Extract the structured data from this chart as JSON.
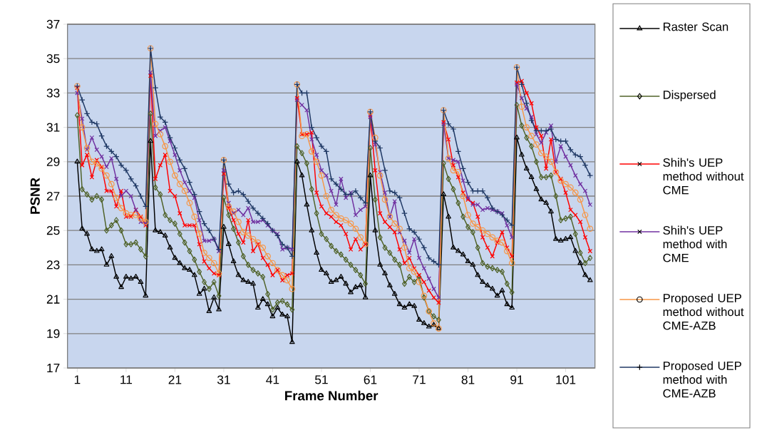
{
  "chart_data": {
    "type": "line",
    "xlabel": "Frame Number",
    "ylabel": "PSNR",
    "x": [
      1,
      2,
      3,
      4,
      5,
      6,
      7,
      8,
      9,
      10,
      11,
      12,
      13,
      14,
      15,
      16,
      17,
      18,
      19,
      20,
      21,
      22,
      23,
      24,
      25,
      26,
      27,
      28,
      29,
      30,
      31,
      32,
      33,
      34,
      35,
      36,
      37,
      38,
      39,
      40,
      41,
      42,
      43,
      44,
      45,
      46,
      47,
      48,
      49,
      50,
      51,
      52,
      53,
      54,
      55,
      56,
      57,
      58,
      59,
      60,
      61,
      62,
      63,
      64,
      65,
      66,
      67,
      68,
      69,
      70,
      71,
      72,
      73,
      74,
      75,
      76,
      77,
      78,
      79,
      80,
      81,
      82,
      83,
      84,
      85,
      86,
      87,
      88,
      89,
      90,
      91,
      92,
      93,
      94,
      95,
      96,
      97,
      98,
      99,
      100,
      101,
      102,
      103,
      104,
      105,
      106
    ],
    "xlim": [
      -1,
      107
    ],
    "xticks": [
      1,
      11,
      21,
      31,
      41,
      51,
      61,
      71,
      81,
      91,
      101
    ],
    "ylim": [
      17,
      37
    ],
    "yticks": [
      17,
      19,
      21,
      23,
      25,
      27,
      29,
      31,
      33,
      35,
      37
    ],
    "grid": "y",
    "legend": "right",
    "line_style": "solid",
    "series": [
      {
        "name": "Raster Scan",
        "color": "#000000",
        "marker": "triangle",
        "values": [
          29.0,
          25.1,
          24.8,
          23.9,
          23.8,
          23.9,
          23.0,
          23.5,
          22.3,
          21.7,
          22.3,
          22.2,
          22.3,
          22.0,
          21.2,
          30.2,
          25.0,
          24.9,
          24.7,
          24.0,
          23.4,
          23.1,
          22.8,
          22.7,
          22.4,
          21.3,
          21.6,
          20.3,
          21.1,
          20.4,
          25.2,
          24.2,
          23.2,
          22.4,
          22.1,
          22.0,
          21.9,
          20.5,
          21.0,
          20.7,
          20.0,
          20.5,
          20.1,
          20.0,
          18.5,
          29.0,
          28.2,
          26.5,
          25.0,
          23.7,
          22.7,
          22.5,
          22.0,
          22.1,
          22.3,
          21.9,
          21.4,
          21.7,
          21.8,
          21.1,
          28.2,
          25.0,
          23.0,
          22.5,
          21.8,
          21.3,
          20.7,
          20.5,
          20.7,
          20.6,
          19.8,
          19.6,
          19.4,
          19.5,
          19.3,
          27.1,
          25.8,
          24.0,
          23.8,
          23.6,
          23.2,
          23.0,
          22.4,
          22.0,
          21.8,
          21.6,
          21.2,
          21.5,
          20.7,
          20.5,
          30.4,
          29.4,
          28.6,
          28.1,
          27.4,
          26.8,
          26.6,
          26.1,
          24.5,
          24.4,
          24.5,
          24.6,
          23.8,
          23.1,
          22.4,
          22.1
        ]
      },
      {
        "name": "Dispersed",
        "color": "#4f6228",
        "marker": "diamond",
        "values": [
          31.7,
          27.4,
          27.1,
          26.8,
          27.0,
          26.8,
          25.0,
          25.3,
          25.6,
          25.0,
          24.2,
          24.2,
          24.3,
          23.9,
          23.5,
          31.8,
          27.5,
          27.1,
          25.9,
          25.6,
          25.4,
          24.8,
          24.3,
          23.8,
          23.3,
          22.6,
          22.0,
          21.6,
          22.0,
          21.2,
          26.9,
          25.9,
          25.1,
          24.3,
          23.5,
          23.0,
          22.7,
          22.5,
          22.3,
          21.3,
          20.4,
          20.8,
          20.9,
          20.7,
          20.4,
          29.9,
          29.5,
          28.9,
          27.4,
          26.0,
          24.8,
          24.5,
          24.1,
          23.8,
          23.6,
          23.3,
          23.0,
          22.7,
          22.4,
          21.9,
          29.8,
          26.8,
          24.6,
          24.0,
          23.7,
          23.3,
          23.0,
          21.9,
          22.3,
          22.0,
          22.3,
          21.1,
          20.3,
          20.0,
          19.8,
          28.9,
          28.0,
          27.4,
          26.6,
          25.8,
          25.2,
          24.9,
          24.0,
          23.1,
          22.9,
          22.8,
          22.7,
          22.6,
          21.9,
          21.4,
          32.3,
          31.1,
          30.4,
          29.9,
          29.0,
          28.1,
          28.1,
          28.2,
          27.0,
          25.6,
          25.7,
          25.8,
          24.8,
          23.7,
          23.1,
          23.4
        ]
      },
      {
        "name": "Shih's UEP method without CME",
        "color": "#ff0000",
        "marker": "cross",
        "values": [
          33.3,
          28.8,
          29.4,
          28.1,
          29.1,
          28.7,
          27.3,
          27.3,
          26.4,
          27.3,
          25.8,
          25.8,
          26.2,
          25.8,
          25.3,
          34.0,
          28.0,
          28.8,
          29.4,
          27.3,
          27.0,
          26.0,
          25.3,
          25.3,
          25.3,
          24.2,
          23.2,
          22.8,
          22.5,
          22.4,
          28.3,
          26.3,
          25.6,
          24.8,
          24.3,
          25.6,
          23.8,
          24.2,
          23.4,
          23.0,
          22.4,
          22.7,
          22.1,
          22.4,
          22.5,
          32.7,
          30.6,
          30.6,
          30.7,
          27.2,
          26.4,
          26.0,
          25.8,
          25.5,
          25.3,
          24.8,
          23.9,
          24.5,
          23.9,
          24.2,
          31.7,
          28.5,
          26.0,
          25.5,
          25.2,
          24.9,
          23.9,
          23.1,
          23.4,
          22.8,
          22.4,
          22.0,
          21.5,
          21.1,
          20.8,
          31.3,
          30.3,
          28.8,
          28.1,
          27.2,
          26.8,
          26.6,
          25.8,
          24.6,
          24.0,
          23.5,
          24.3,
          24.9,
          24.0,
          23.5,
          33.6,
          33.7,
          33.0,
          32.4,
          31.0,
          30.5,
          28.6,
          30.3,
          28.4,
          28.0,
          27.2,
          26.2,
          25.9,
          25.5,
          24.6,
          23.8
        ]
      },
      {
        "name": "Shih's UEP method with CME",
        "color": "#7030a0",
        "marker": "cross",
        "values": [
          33.0,
          31.5,
          29.7,
          30.4,
          29.7,
          29.3,
          28.7,
          29.2,
          28.0,
          27.0,
          27.3,
          27.0,
          26.2,
          25.5,
          25.4,
          34.2,
          30.5,
          30.8,
          31.0,
          30.2,
          29.4,
          28.5,
          27.8,
          27.3,
          26.9,
          25.6,
          24.4,
          24.4,
          24.5,
          23.8,
          28.5,
          26.6,
          26.0,
          26.2,
          25.9,
          26.3,
          25.5,
          25.5,
          25.6,
          25.3,
          25.0,
          24.8,
          23.9,
          24.0,
          23.9,
          32.6,
          32.3,
          32.0,
          30.3,
          29.4,
          28.5,
          28.2,
          27.3,
          26.5,
          28.0,
          26.9,
          27.2,
          25.9,
          26.2,
          26.4,
          31.6,
          30.0,
          28.4,
          27.2,
          25.8,
          26.7,
          24.9,
          24.4,
          23.7,
          24.5,
          23.4,
          22.8,
          22.2,
          21.6,
          21.1,
          31.2,
          29.2,
          29.1,
          29.0,
          27.9,
          26.9,
          26.5,
          26.5,
          26.2,
          26.3,
          26.2,
          26.1,
          26.0,
          25.3,
          24.6,
          33.5,
          32.7,
          32.1,
          31.6,
          30.6,
          30.1,
          30.7,
          31.1,
          29.0,
          29.9,
          29.3,
          28.8,
          28.2,
          27.7,
          27.3,
          26.5
        ]
      },
      {
        "name": "Proposed UEP method without CME-AZB",
        "color": "#f79646",
        "marker": "circle",
        "values": [
          33.4,
          31.0,
          29.8,
          29.0,
          28.9,
          28.6,
          28.2,
          27.7,
          26.9,
          26.3,
          26.0,
          25.9,
          25.9,
          25.7,
          25.5,
          35.6,
          31.2,
          30.6,
          29.9,
          29.0,
          28.2,
          27.7,
          27.3,
          26.6,
          25.8,
          24.8,
          23.7,
          23.4,
          23.1,
          22.5,
          29.1,
          26.4,
          26.1,
          25.5,
          24.9,
          24.7,
          24.5,
          24.3,
          24.0,
          23.5,
          23.1,
          22.7,
          22.4,
          22.1,
          21.6,
          33.5,
          30.5,
          30.6,
          29.6,
          29.0,
          28.2,
          27.0,
          26.2,
          25.9,
          25.7,
          25.6,
          25.4,
          25.1,
          24.6,
          24.2,
          31.9,
          30.4,
          28.2,
          26.8,
          25.8,
          25.4,
          25.1,
          24.0,
          22.8,
          22.6,
          22.0,
          21.2,
          20.3,
          19.6,
          19.3,
          32.0,
          29.2,
          28.5,
          28.4,
          27.0,
          25.9,
          25.4,
          25.2,
          25.0,
          24.8,
          24.6,
          24.4,
          24.3,
          23.8,
          23.1,
          34.5,
          32.2,
          31.0,
          30.5,
          30.0,
          29.5,
          29.3,
          29.0,
          28.4,
          27.9,
          27.7,
          27.5,
          27.2,
          26.8,
          25.9,
          25.1
        ]
      },
      {
        "name": "Proposed UEP method with CME-AZB",
        "color": "#1f3864",
        "marker": "plus",
        "values": [
          33.4,
          32.6,
          31.8,
          31.3,
          31.2,
          30.5,
          29.9,
          29.6,
          29.3,
          28.8,
          28.5,
          28.0,
          27.6,
          27.0,
          26.4,
          35.6,
          33.3,
          31.6,
          31.3,
          30.4,
          29.8,
          29.1,
          28.6,
          27.8,
          27.1,
          26.1,
          25.4,
          25.0,
          24.5,
          23.9,
          29.1,
          27.7,
          27.2,
          27.3,
          27.1,
          26.7,
          26.3,
          26.0,
          25.7,
          25.4,
          25.0,
          24.7,
          24.2,
          24.0,
          23.5,
          33.5,
          33.0,
          33.0,
          31.0,
          30.4,
          29.9,
          29.6,
          28.0,
          27.7,
          27.4,
          27.1,
          27.1,
          27.3,
          26.9,
          26.6,
          31.9,
          30.2,
          29.8,
          28.5,
          27.3,
          27.2,
          26.9,
          26.0,
          25.1,
          24.9,
          24.5,
          24.0,
          23.4,
          23.2,
          23.0,
          32.0,
          31.2,
          30.9,
          29.6,
          28.6,
          27.8,
          27.3,
          27.3,
          27.3,
          26.9,
          26.3,
          26.1,
          25.9,
          25.6,
          25.3,
          34.5,
          33.5,
          32.4,
          31.4,
          30.8,
          30.8,
          30.8,
          30.9,
          30.3,
          30.2,
          30.2,
          29.7,
          29.4,
          29.3,
          28.8,
          28.2
        ]
      }
    ]
  }
}
